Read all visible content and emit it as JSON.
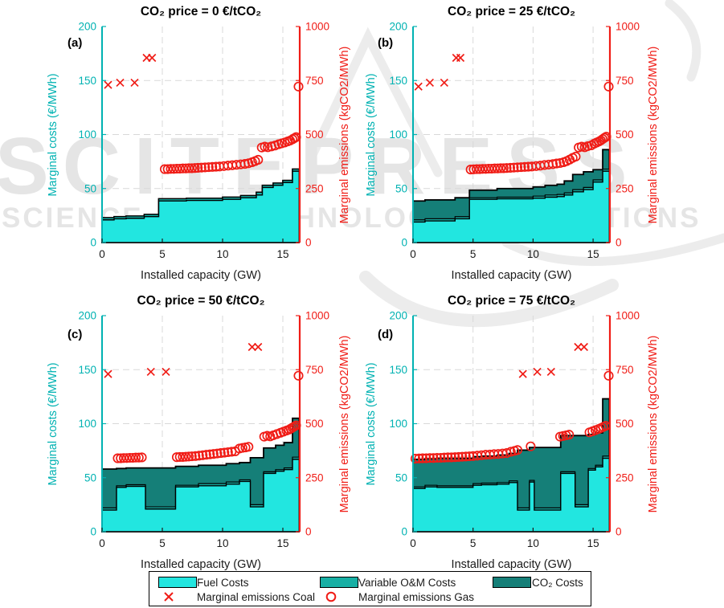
{
  "figure": {
    "watermark": {
      "line1": "SCITEPRESS",
      "line2": "SCIENCE AND TECHNOLOGY PUBLICATIONS"
    },
    "colors": {
      "fuel": "#22E6E0",
      "om": "#17AFA4",
      "co2": "#157F78",
      "axis_left": "#00B2B2",
      "axis_right": "#F01C16",
      "marker_red": "#F01C16",
      "grid": "#D9D9D9",
      "tick_text": "#1a1a1a",
      "outline": "#000000",
      "watermark_gray": "#E5E5E5"
    }
  },
  "legend": {
    "rows": [
      [
        {
          "swatch": "fuel",
          "label": "Fuel Costs"
        },
        {
          "swatch": "om",
          "label": "Variable O&M Costs"
        },
        {
          "swatch": "co2",
          "label": "CO₂ Costs"
        }
      ],
      [
        {
          "marker": "x",
          "label": "Marginal emissions Coal"
        },
        {
          "marker": "o",
          "label": "Marginal emissions Gas"
        }
      ]
    ]
  },
  "chart_data": [
    {
      "type": "area+scatter",
      "panel": "(a)",
      "title": "CO₂ price = 0 €/tCO₂",
      "xlabel": "Installed capacity (GW)",
      "ylabel_left": "Marginal costs (€/MWh)",
      "ylabel_right": "Marginal emissions (kgCO2/MWh)",
      "xlim": [
        0,
        16.4
      ],
      "xticks": [
        0,
        5,
        10,
        15
      ],
      "ylim_left": [
        0,
        200
      ],
      "yticks_left": [
        0,
        50,
        100,
        150,
        200
      ],
      "ylim_right": [
        0,
        1000
      ],
      "yticks_right": [
        0,
        250,
        500,
        750,
        1000
      ],
      "grid": "dashed",
      "stack_series_names": [
        "Fuel Costs",
        "Variable O&M Costs",
        "CO₂ Costs"
      ],
      "steps": {
        "x": [
          0,
          1,
          2,
          3.5,
          4.7,
          7,
          10,
          11.5,
          12.8,
          13.3,
          14.2,
          15,
          15.8,
          16.35
        ],
        "fuel": [
          21,
          22,
          22.5,
          24,
          38.5,
          39,
          40,
          41.5,
          44,
          51,
          53,
          55.5,
          66
        ],
        "om_top": [
          23,
          24,
          24.5,
          26,
          40.5,
          41,
          42,
          43.5,
          46.5,
          53,
          55,
          57.5,
          68
        ],
        "total": [
          23,
          24,
          24.5,
          26,
          40.5,
          41,
          42,
          43.5,
          46.5,
          53,
          55,
          57.5,
          68
        ]
      },
      "coal_markers": [
        [
          0.5,
          730
        ],
        [
          1.5,
          740
        ],
        [
          2.7,
          740
        ],
        [
          3.7,
          855
        ],
        [
          4.15,
          855
        ]
      ],
      "gas_markers": [
        [
          5.2,
          340
        ],
        [
          5.45,
          340
        ],
        [
          5.7,
          341
        ],
        [
          5.95,
          341
        ],
        [
          6.2,
          342
        ],
        [
          6.45,
          342
        ],
        [
          6.7,
          343
        ],
        [
          6.95,
          343
        ],
        [
          7.2,
          344
        ],
        [
          7.45,
          344
        ],
        [
          7.7,
          345
        ],
        [
          7.95,
          346
        ],
        [
          8.25,
          347
        ],
        [
          8.55,
          348
        ],
        [
          8.85,
          349
        ],
        [
          9.15,
          350
        ],
        [
          9.45,
          351
        ],
        [
          9.75,
          352
        ],
        [
          10.1,
          354
        ],
        [
          10.45,
          356
        ],
        [
          10.8,
          358
        ],
        [
          11.15,
          360
        ],
        [
          11.5,
          362
        ],
        [
          11.85,
          364
        ],
        [
          12.15,
          367
        ],
        [
          12.45,
          372
        ],
        [
          12.7,
          377
        ],
        [
          12.95,
          383
        ],
        [
          13.25,
          440
        ],
        [
          13.5,
          444
        ],
        [
          13.75,
          441
        ],
        [
          14.05,
          445
        ],
        [
          14.35,
          449
        ],
        [
          14.65,
          455
        ],
        [
          14.9,
          459
        ],
        [
          15.15,
          463
        ],
        [
          15.4,
          468
        ],
        [
          15.6,
          472
        ],
        [
          15.8,
          478
        ],
        [
          15.95,
          483
        ],
        [
          16.1,
          488
        ],
        [
          16.3,
          722
        ]
      ]
    },
    {
      "type": "area+scatter",
      "panel": "(b)",
      "title": "CO₂ price = 25 €/tCO₂",
      "xlabel": "Installed capacity (GW)",
      "ylabel_left": "Marginal costs (€/MWh)",
      "ylabel_right": "Marginal emissions (kgCO2/MWh)",
      "xlim": [
        0,
        16.4
      ],
      "xticks": [
        0,
        5,
        10,
        15
      ],
      "ylim_left": [
        0,
        200
      ],
      "yticks_left": [
        0,
        50,
        100,
        150,
        200
      ],
      "ylim_right": [
        0,
        1000
      ],
      "yticks_right": [
        0,
        250,
        500,
        750,
        1000
      ],
      "grid": "dashed",
      "stack_series_names": [
        "Fuel Costs",
        "Variable O&M Costs",
        "CO₂ Costs"
      ],
      "steps": {
        "x": [
          0,
          1,
          3.5,
          4.7,
          7,
          10,
          11,
          12,
          12.6,
          13.3,
          14.2,
          15,
          15.8,
          16.35
        ],
        "fuel": [
          19,
          20,
          22,
          40,
          40.5,
          41,
          42,
          42.5,
          44,
          47,
          49,
          56,
          66
        ],
        "om_top": [
          21,
          22,
          24,
          41.5,
          42,
          43,
          44,
          44.5,
          46,
          49,
          51,
          58,
          68
        ],
        "total": [
          38.5,
          39.5,
          41.5,
          48.5,
          50,
          51.5,
          53,
          54,
          57,
          63,
          65.5,
          67.5,
          86
        ]
      },
      "coal_markers": [
        [
          0.45,
          722
        ],
        [
          1.4,
          740
        ],
        [
          2.6,
          740
        ],
        [
          3.6,
          855
        ],
        [
          3.95,
          855
        ]
      ],
      "gas_markers": [
        [
          4.8,
          338
        ],
        [
          5.05,
          339
        ],
        [
          5.3,
          340
        ],
        [
          5.55,
          340
        ],
        [
          5.8,
          341
        ],
        [
          6.05,
          341
        ],
        [
          6.3,
          342
        ],
        [
          6.55,
          342
        ],
        [
          6.8,
          343
        ],
        [
          7.05,
          343
        ],
        [
          7.3,
          344
        ],
        [
          7.55,
          344
        ],
        [
          7.8,
          345
        ],
        [
          8.1,
          346
        ],
        [
          8.4,
          347
        ],
        [
          8.7,
          348
        ],
        [
          9.0,
          349
        ],
        [
          9.3,
          350
        ],
        [
          9.6,
          351
        ],
        [
          9.9,
          352
        ],
        [
          10.25,
          354
        ],
        [
          10.6,
          356
        ],
        [
          10.95,
          359
        ],
        [
          11.3,
          361
        ],
        [
          11.65,
          363
        ],
        [
          11.95,
          366
        ],
        [
          12.25,
          368
        ],
        [
          12.55,
          372
        ],
        [
          12.8,
          377
        ],
        [
          13.05,
          384
        ],
        [
          13.3,
          392
        ],
        [
          13.55,
          398
        ],
        [
          13.8,
          440
        ],
        [
          14.05,
          444
        ],
        [
          14.3,
          441
        ],
        [
          14.55,
          446
        ],
        [
          14.85,
          450
        ],
        [
          15.1,
          458
        ],
        [
          15.3,
          463
        ],
        [
          15.5,
          468
        ],
        [
          15.65,
          473
        ],
        [
          15.8,
          479
        ],
        [
          15.95,
          485
        ],
        [
          16.1,
          490
        ],
        [
          16.3,
          722
        ]
      ]
    },
    {
      "type": "area+scatter",
      "panel": "(c)",
      "title": "CO₂ price = 50 €/tCO₂",
      "xlabel": "Installed capacity (GW)",
      "ylabel_left": "Marginal costs (€/MWh)",
      "ylabel_right": "Marginal emissions (kgCO2/MWh)",
      "xlim": [
        0,
        16.4
      ],
      "xticks": [
        0,
        5,
        10,
        15
      ],
      "ylim_left": [
        0,
        200
      ],
      "yticks_left": [
        0,
        50,
        100,
        150,
        200
      ],
      "ylim_right": [
        0,
        1000
      ],
      "yticks_right": [
        0,
        250,
        500,
        750,
        1000
      ],
      "grid": "dashed",
      "stack_series_names": [
        "Fuel Costs",
        "Variable O&M Costs",
        "CO₂ Costs"
      ],
      "steps": {
        "x": [
          0,
          1.2,
          2,
          3.6,
          6.1,
          8,
          10.3,
          11.4,
          12.3,
          13.4,
          14.4,
          15.1,
          15.8,
          16.35
        ],
        "fuel": [
          20,
          41,
          42,
          21,
          41.5,
          42.5,
          44,
          46.5,
          23,
          54,
          56,
          57.5,
          67
        ],
        "om_top": [
          22,
          42.5,
          43.5,
          23,
          43,
          44.5,
          46,
          48,
          25,
          55.5,
          57.5,
          59,
          69
        ],
        "total": [
          58,
          58.5,
          59,
          59,
          60.5,
          61.5,
          63,
          64,
          68.5,
          77.5,
          80,
          82.5,
          105
        ]
      },
      "coal_markers": [
        [
          0.5,
          730
        ],
        [
          4.05,
          740
        ],
        [
          5.3,
          740
        ],
        [
          12.45,
          855
        ],
        [
          12.95,
          855
        ]
      ],
      "gas_markers": [
        [
          1.3,
          340
        ],
        [
          1.55,
          340
        ],
        [
          1.8,
          341
        ],
        [
          2.05,
          341
        ],
        [
          2.3,
          342
        ],
        [
          2.55,
          342
        ],
        [
          2.8,
          343
        ],
        [
          3.05,
          343
        ],
        [
          3.3,
          344
        ],
        [
          6.2,
          345
        ],
        [
          6.45,
          346
        ],
        [
          6.7,
          346
        ],
        [
          6.95,
          347
        ],
        [
          7.2,
          348
        ],
        [
          7.45,
          349
        ],
        [
          7.75,
          350
        ],
        [
          8.05,
          352
        ],
        [
          8.35,
          354
        ],
        [
          8.65,
          356
        ],
        [
          8.95,
          358
        ],
        [
          9.25,
          360
        ],
        [
          9.55,
          362
        ],
        [
          9.85,
          364
        ],
        [
          10.15,
          366
        ],
        [
          10.45,
          368
        ],
        [
          10.75,
          370
        ],
        [
          11.05,
          372
        ],
        [
          11.4,
          385
        ],
        [
          11.65,
          388
        ],
        [
          11.9,
          390
        ],
        [
          12.15,
          393
        ],
        [
          13.45,
          440
        ],
        [
          13.7,
          444
        ],
        [
          13.95,
          441
        ],
        [
          14.2,
          446
        ],
        [
          14.5,
          452
        ],
        [
          14.8,
          458
        ],
        [
          15.05,
          463
        ],
        [
          15.3,
          468
        ],
        [
          15.5,
          472
        ],
        [
          15.65,
          477
        ],
        [
          15.8,
          482
        ],
        [
          15.95,
          487
        ],
        [
          16.1,
          492
        ],
        [
          16.3,
          722
        ]
      ]
    },
    {
      "type": "area+scatter",
      "panel": "(d)",
      "title": "CO₂ price = 75 €/tCO₂",
      "xlabel": "Installed capacity (GW)",
      "ylabel_left": "Marginal costs (€/MWh)",
      "ylabel_right": "Marginal emissions (kgCO2/MWh)",
      "xlim": [
        0,
        16.4
      ],
      "xticks": [
        0,
        5,
        10,
        15
      ],
      "ylim_left": [
        0,
        200
      ],
      "yticks_left": [
        0,
        50,
        100,
        150,
        200
      ],
      "ylim_right": [
        0,
        1000
      ],
      "yticks_right": [
        0,
        250,
        500,
        750,
        1000
      ],
      "grid": "dashed",
      "stack_series_names": [
        "Fuel Costs",
        "Variable O&M Costs",
        "CO₂ Costs"
      ],
      "steps": {
        "x": [
          0,
          1,
          2,
          5,
          5.7,
          7,
          8,
          8.7,
          9.7,
          10.1,
          12.3,
          13.5,
          14.6,
          15.2,
          15.8,
          16.35
        ],
        "fuel": [
          40,
          41.5,
          41,
          43,
          43.5,
          44,
          45.5,
          20,
          46,
          20,
          54,
          23,
          57,
          60,
          68
        ],
        "om_top": [
          41.5,
          43,
          42.5,
          44.5,
          45,
          45.5,
          47,
          22,
          47.5,
          22,
          55.5,
          25,
          58.5,
          61.5,
          70
        ],
        "total": [
          67,
          67.5,
          68,
          69.5,
          70,
          71,
          72.5,
          75.5,
          78,
          78,
          89,
          89,
          90,
          91.5,
          123
        ]
      },
      "coal_markers": [
        [
          9.15,
          730
        ],
        [
          10.35,
          740
        ],
        [
          11.5,
          740
        ],
        [
          13.75,
          855
        ],
        [
          14.25,
          855
        ]
      ],
      "gas_markers": [
        [
          0.2,
          338
        ],
        [
          0.5,
          339
        ],
        [
          0.8,
          340
        ],
        [
          1.1,
          340
        ],
        [
          1.4,
          341
        ],
        [
          1.7,
          341
        ],
        [
          2.0,
          342
        ],
        [
          2.3,
          342
        ],
        [
          2.6,
          343
        ],
        [
          2.9,
          344
        ],
        [
          3.2,
          344
        ],
        [
          3.5,
          345
        ],
        [
          3.8,
          346
        ],
        [
          4.1,
          347
        ],
        [
          4.4,
          348
        ],
        [
          4.7,
          349
        ],
        [
          5.0,
          350
        ],
        [
          5.35,
          352
        ],
        [
          5.7,
          354
        ],
        [
          6.05,
          356
        ],
        [
          6.4,
          357
        ],
        [
          6.75,
          359
        ],
        [
          7.1,
          360
        ],
        [
          7.45,
          362
        ],
        [
          7.8,
          364
        ],
        [
          8.15,
          370
        ],
        [
          8.45,
          374
        ],
        [
          8.7,
          378
        ],
        [
          9.8,
          395
        ],
        [
          12.25,
          440
        ],
        [
          12.5,
          443
        ],
        [
          12.75,
          446
        ],
        [
          13.0,
          449
        ],
        [
          14.7,
          460
        ],
        [
          14.95,
          465
        ],
        [
          15.2,
          470
        ],
        [
          15.45,
          475
        ],
        [
          15.65,
          480
        ],
        [
          15.85,
          485
        ],
        [
          16.05,
          490
        ],
        [
          16.3,
          722
        ]
      ]
    }
  ]
}
